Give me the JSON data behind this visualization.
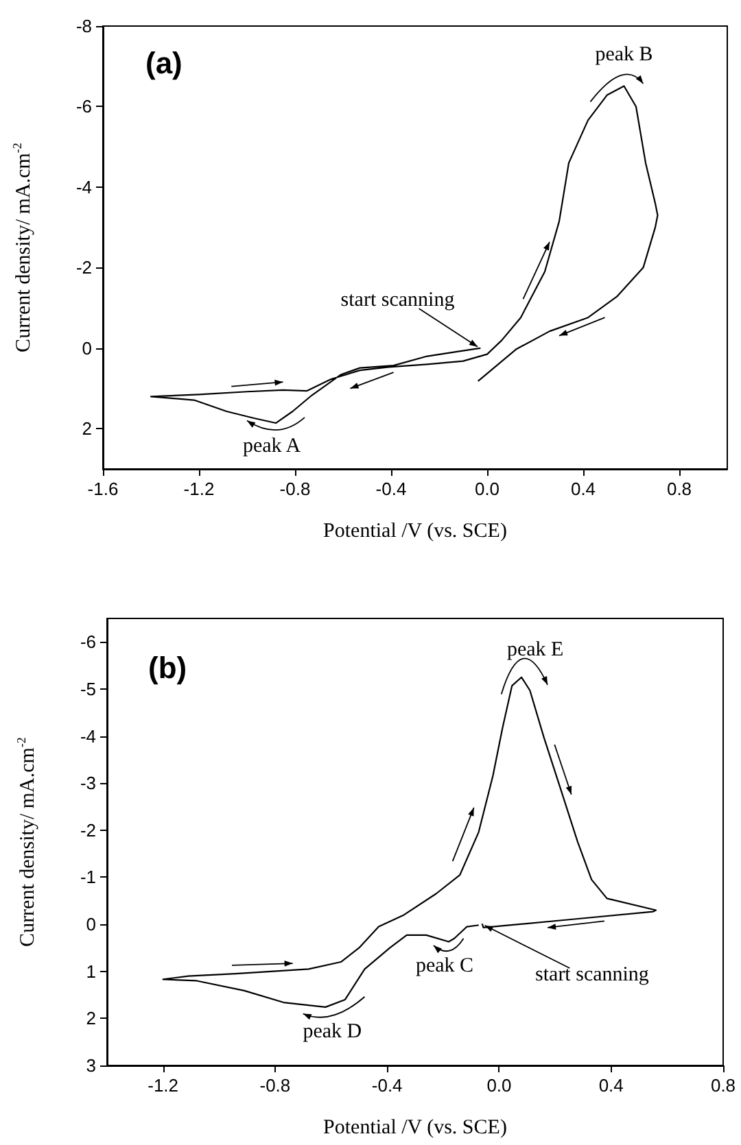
{
  "chart_data": [
    {
      "type": "line",
      "title": "(a)",
      "xlabel": "Potential /V (vs. SCE)",
      "ylabel": "Current density/ mA.cm$^{-2}$",
      "x": [
        -0.03,
        -0.13,
        -0.25,
        -0.39,
        -0.53,
        -0.61,
        -0.73,
        -0.81,
        -0.88,
        -0.97,
        -1.085,
        -1.22,
        -1.4,
        -1.2,
        -1.0,
        -0.85,
        -0.75,
        -0.65,
        -0.53,
        -0.41,
        -0.25,
        -0.1,
        0.0,
        0.06,
        0.14,
        0.24,
        0.3,
        0.34,
        0.42,
        0.5,
        0.57,
        0.62,
        0.66,
        0.7,
        0.71,
        0.7,
        0.65,
        0.54,
        0.42,
        0.26,
        0.12,
        -0.036
      ],
      "values": [
        0.0,
        0.09,
        0.2,
        0.43,
        0.49,
        0.66,
        1.17,
        1.57,
        1.86,
        1.74,
        1.57,
        1.29,
        1.2,
        1.15,
        1.08,
        1.04,
        1.06,
        0.77,
        0.55,
        0.47,
        0.4,
        0.32,
        0.15,
        -0.19,
        -0.76,
        -1.9,
        -3.15,
        -4.6,
        -5.66,
        -6.29,
        -6.51,
        -6.0,
        -4.6,
        -3.6,
        -3.3,
        -3.0,
        -2.0,
        -1.28,
        -0.76,
        -0.42,
        0.03,
        0.81
      ],
      "color": "#000000",
      "xlim": [
        -1.6,
        1.0
      ],
      "xticks": [
        -1.6,
        -1.2,
        -0.8,
        -0.4,
        {
          "value": 0,
          "label": "0.0"
        },
        0.4,
        0.8
      ],
      "ylim": [
        3,
        -8
      ],
      "yticks": [
        -8,
        -6,
        -4,
        -2,
        0,
        2
      ],
      "annotations": [
        {
          "text": "peak A",
          "x": -0.88,
          "y": 1.86
        },
        {
          "text": "peak B",
          "x": 0.57,
          "y": -6.51
        },
        {
          "text": "start scanning",
          "x": -0.03,
          "y": 0.0
        }
      ]
    },
    {
      "type": "line",
      "title": "(b)",
      "xlabel": "Potential /V (vs. SCE)",
      "ylabel": "Current density/ mA.cm$^{-2}$",
      "x": [
        -0.06,
        -0.056,
        0.25,
        0.55,
        0.56,
        0.385,
        0.33,
        0.28,
        0.215,
        0.16,
        0.11,
        0.08,
        0.046,
        0.012,
        -0.022,
        -0.073,
        -0.14,
        -0.225,
        -0.34,
        -0.43,
        -0.5,
        -0.565,
        -0.68,
        -0.94,
        -1.11,
        -1.2,
        -1.08,
        -0.91,
        -0.77,
        -0.62,
        -0.55,
        -0.48,
        -0.39,
        -0.33,
        -0.26,
        -0.18,
        -0.16,
        -0.115,
        -0.075
      ],
      "values": [
        0.0,
        0.07,
        -0.1,
        -0.27,
        -0.3,
        -0.55,
        -0.95,
        -1.76,
        -2.96,
        -3.97,
        -4.97,
        -5.25,
        -5.07,
        -4.17,
        -3.16,
        -1.96,
        -1.05,
        -0.65,
        -0.2,
        0.05,
        0.5,
        0.8,
        0.95,
        1.05,
        1.1,
        1.17,
        1.2,
        1.41,
        1.66,
        1.76,
        1.6,
        0.95,
        0.5,
        0.23,
        0.23,
        0.37,
        0.3,
        0.05,
        0.02
      ],
      "color": "#000000",
      "xlim": [
        -1.4,
        0.8
      ],
      "xticks": [
        -1.2,
        -0.8,
        -0.4,
        {
          "value": 0,
          "label": "0.0"
        },
        0.4,
        0.8
      ],
      "ylim": [
        3,
        -6.5
      ],
      "yticks": [
        -6,
        -5,
        -4,
        -3,
        -2,
        -1,
        0,
        1,
        2,
        3
      ],
      "annotations": [
        {
          "text": "peak C",
          "x": -0.18,
          "y": 0.37
        },
        {
          "text": "peak D",
          "x": -0.62,
          "y": 1.76
        },
        {
          "text": "peak E",
          "x": 0.08,
          "y": -5.25
        },
        {
          "text": "start scanning",
          "x": -0.06,
          "y": 0.0
        }
      ]
    }
  ]
}
